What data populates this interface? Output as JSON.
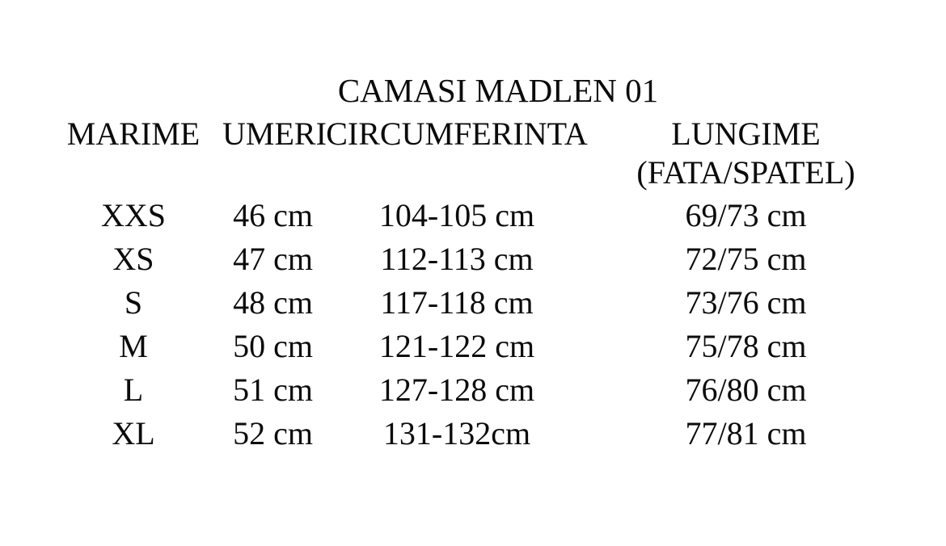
{
  "page": {
    "background_color": "#ffffff",
    "text_color": "#0b0b0b"
  },
  "title": "CAMASI MADLEN 01",
  "table": {
    "headers": [
      "MARIME",
      "UMERI",
      "CIRCUMFERINTA",
      "LUNGIME"
    ],
    "lungime_header_line2": "(FATA/SPATEL)",
    "rows": [
      [
        "XXS",
        "46 cm",
        "104-105 cm",
        "69/73 cm"
      ],
      [
        "XS",
        "47 cm",
        "112-113 cm",
        "72/75 cm"
      ],
      [
        "S",
        "48 cm",
        "117-118 cm",
        "73/76 cm"
      ],
      [
        "M",
        "50 cm",
        "121-122 cm",
        "75/78 cm"
      ],
      [
        "L",
        "51 cm",
        "127-128 cm",
        "76/80 cm"
      ],
      [
        "XL",
        "52 cm",
        "131-132cm",
        "77/81 cm"
      ]
    ]
  }
}
